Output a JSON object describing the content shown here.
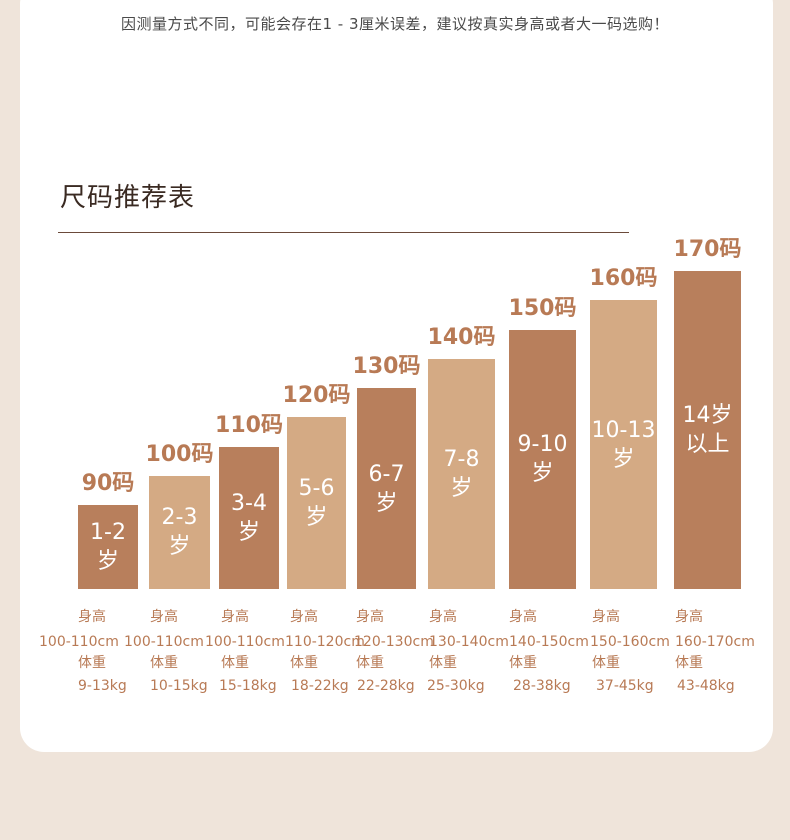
{
  "notice": "因测量方式不同，可能会存在1 - 3厘米误差，建议按真实身高或者大一码选购！",
  "section_title": "尺码推荐表",
  "info_labels": {
    "height": "身高",
    "weight": "体重"
  },
  "colors": {
    "dark": "#b87f5c",
    "light": "#d4aa84",
    "text": "#b87a55"
  },
  "chart_data": {
    "type": "bar",
    "title": "尺码推荐表",
    "categories": [
      "90码",
      "100码",
      "110码",
      "120码",
      "130码",
      "140码",
      "150码",
      "160码",
      "170码"
    ],
    "series": [
      {
        "values": [
          90,
          100,
          110,
          120,
          130,
          140,
          150,
          160,
          170
        ]
      }
    ],
    "ages": [
      [
        "1-2",
        "岁"
      ],
      [
        "2-3",
        "岁"
      ],
      [
        "3-4",
        "岁"
      ],
      [
        "5-6",
        "岁"
      ],
      [
        "6-7",
        "岁"
      ],
      [
        "7-8",
        "岁"
      ],
      [
        "9-10",
        "岁"
      ],
      [
        "10-13",
        "岁"
      ],
      [
        "14岁",
        "以上"
      ]
    ],
    "heights": [
      "100-110cm",
      "100-110cm",
      "100-110cm",
      "110-120cm",
      "120-130cm",
      "130-140cm",
      "140-150cm",
      "150-160cm",
      "160-170cm"
    ],
    "weights": [
      "9-13kg",
      "10-15kg",
      "15-18kg",
      "18-22kg",
      "22-28kg",
      "25-30kg",
      "28-38kg",
      "37-45kg",
      "43-48kg"
    ],
    "bar_colors": [
      "dark",
      "light",
      "dark",
      "light",
      "dark",
      "light",
      "dark",
      "light",
      "dark"
    ]
  }
}
